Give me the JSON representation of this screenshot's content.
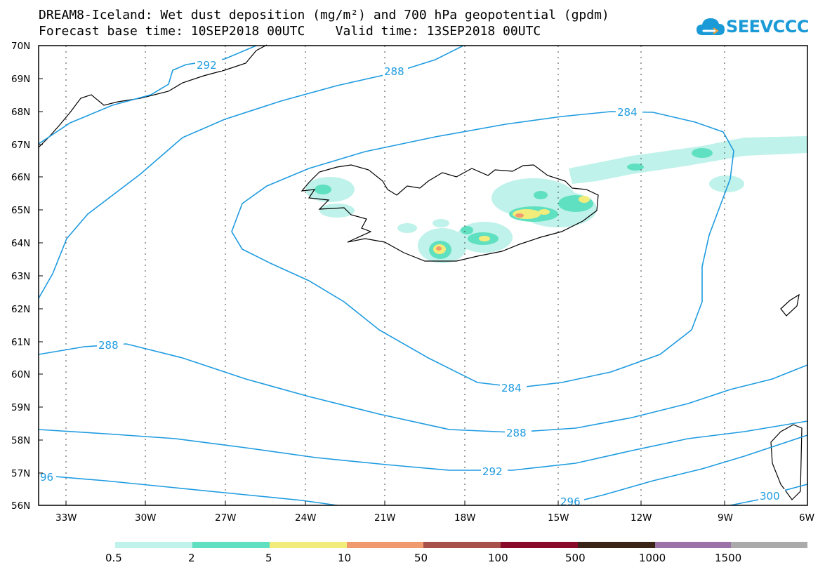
{
  "header": {
    "title_line1": "DREAM8-Iceland: Wet dust deposition (mg/m²) and 700 hPa geopotential (gpdm)",
    "title_line2": "Forecast base time: 10SEP2018 00UTC    Valid time: 13SEP2018 00UTC"
  },
  "logo": {
    "text": "SEEVCCC",
    "color": "#1a9ad6"
  },
  "map": {
    "lat_labels": [
      "70N",
      "69N",
      "68N",
      "67N",
      "66N",
      "65N",
      "64N",
      "63N",
      "62N",
      "61N",
      "60N",
      "59N",
      "58N",
      "57N",
      "56N"
    ],
    "lon_labels": [
      "33W",
      "30W",
      "27W",
      "24W",
      "21W",
      "18W",
      "15W",
      "12W",
      "9W",
      "6W"
    ],
    "contour_color": "#1e9be0",
    "contour_labels": [
      "292",
      "288",
      "284",
      "288",
      "284",
      "288",
      "292",
      "96",
      "296",
      "300"
    ]
  },
  "legend": {
    "colors": [
      "#bff2ea",
      "#5fe0c0",
      "#f2ec7a",
      "#f09a6e",
      "#a8504a",
      "#8a0a2a",
      "#3a2418",
      "#9a72a8",
      "#aaaaaa"
    ],
    "labels": [
      "0.5",
      "2",
      "5",
      "10",
      "50",
      "100",
      "500",
      "1000",
      "1500"
    ]
  }
}
